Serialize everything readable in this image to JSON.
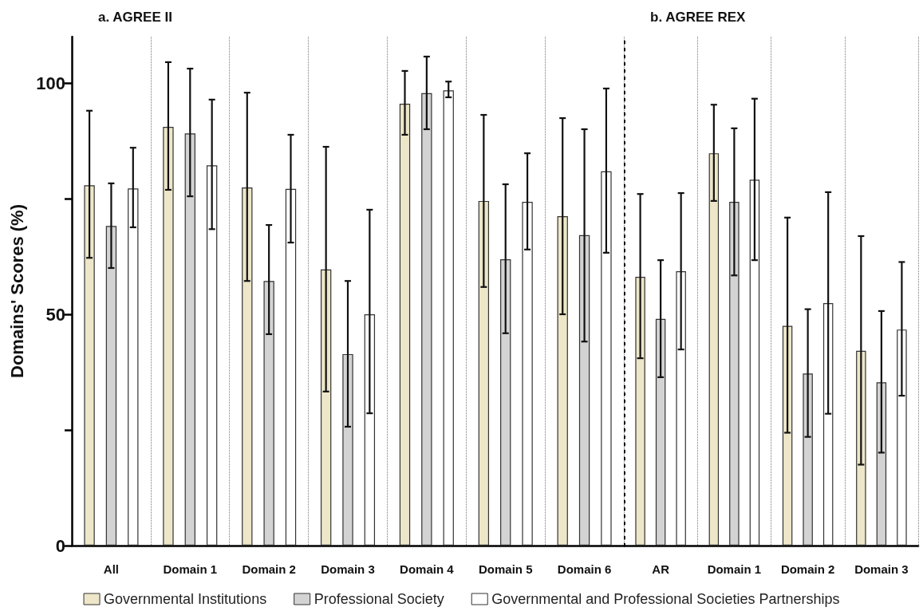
{
  "chart_data": [
    {
      "type": "bar",
      "title": "a. AGREE II",
      "ylabel": "Domains' Scores (%)",
      "categories": [
        "All",
        "Domain 1",
        "Domain 2",
        "Domain 3",
        "Domain 4",
        "Domain 5",
        "Domain 6"
      ],
      "ylim": [
        0,
        110
      ],
      "yticks": [
        0,
        {
          "value": 25,
          "label": null
        },
        50,
        {
          "value": 75,
          "label": null
        },
        100
      ],
      "grid": "x",
      "legend": "bottom",
      "series": [
        {
          "name": "Governmental Institutions",
          "color": "#ede6c8",
          "values": [
            77.9,
            90.5,
            77.4,
            59.7,
            95.5,
            74.5,
            71.2
          ],
          "errors": [
            [
              62.2,
              94.0
            ],
            [
              76.9,
              104.5
            ],
            [
              57.2,
              97.9
            ],
            [
              33.3,
              86.2
            ],
            [
              88.8,
              102.6
            ],
            [
              55.9,
              93.1
            ],
            [
              50.0,
              92.4
            ]
          ]
        },
        {
          "name": "Professional Society",
          "color": "#d3d3d3",
          "values": [
            69.1,
            89.1,
            57.2,
            41.4,
            97.8,
            61.9,
            67.1
          ],
          "errors": [
            [
              60.0,
              78.3
            ],
            [
              75.5,
              103.1
            ],
            [
              45.7,
              69.3
            ],
            [
              25.7,
              57.2
            ],
            [
              90.0,
              105.7
            ],
            [
              45.9,
              78.1
            ],
            [
              44.1,
              90.0
            ]
          ]
        },
        {
          "name": "Governmental and Professional Societies Partnerships",
          "color": "#ffffff",
          "values": [
            77.2,
            82.2,
            77.1,
            50.0,
            98.4,
            74.3,
            80.9
          ],
          "errors": [
            [
              68.8,
              86.0
            ],
            [
              68.4,
              96.4
            ],
            [
              65.5,
              88.8
            ],
            [
              28.6,
              72.6
            ],
            [
              96.9,
              100.3
            ],
            [
              64.0,
              84.8
            ],
            [
              63.3,
              98.8
            ]
          ]
        }
      ]
    },
    {
      "type": "bar",
      "title": "b. AGREE REX",
      "categories": [
        "AR",
        "Domain 1",
        "Domain 2",
        "Domain 3"
      ],
      "ylim": [
        0,
        110
      ],
      "tick_labels": "x",
      "grid": "x",
      "series": [
        {
          "color": "#ede6c8",
          "values": [
            58.1,
            84.8,
            47.5,
            42.1
          ],
          "errors": [
            [
              40.5,
              76.0
            ],
            [
              74.5,
              95.3
            ],
            [
              24.4,
              70.9
            ],
            [
              17.5,
              66.9
            ]
          ]
        },
        {
          "color": "#d3d3d3",
          "values": [
            49.0,
            74.3,
            37.2,
            35.3
          ],
          "errors": [
            [
              36.4,
              61.7
            ],
            [
              58.4,
              90.2
            ],
            [
              23.5,
              51.1
            ],
            [
              20.1,
              50.7
            ]
          ]
        },
        {
          "color": "#ffffff",
          "values": [
            59.3,
            79.1,
            52.4,
            46.7
          ],
          "errors": [
            [
              42.4,
              76.2
            ],
            [
              61.7,
              96.6
            ],
            [
              28.5,
              76.4
            ],
            [
              32.4,
              61.3
            ]
          ]
        }
      ]
    }
  ]
}
